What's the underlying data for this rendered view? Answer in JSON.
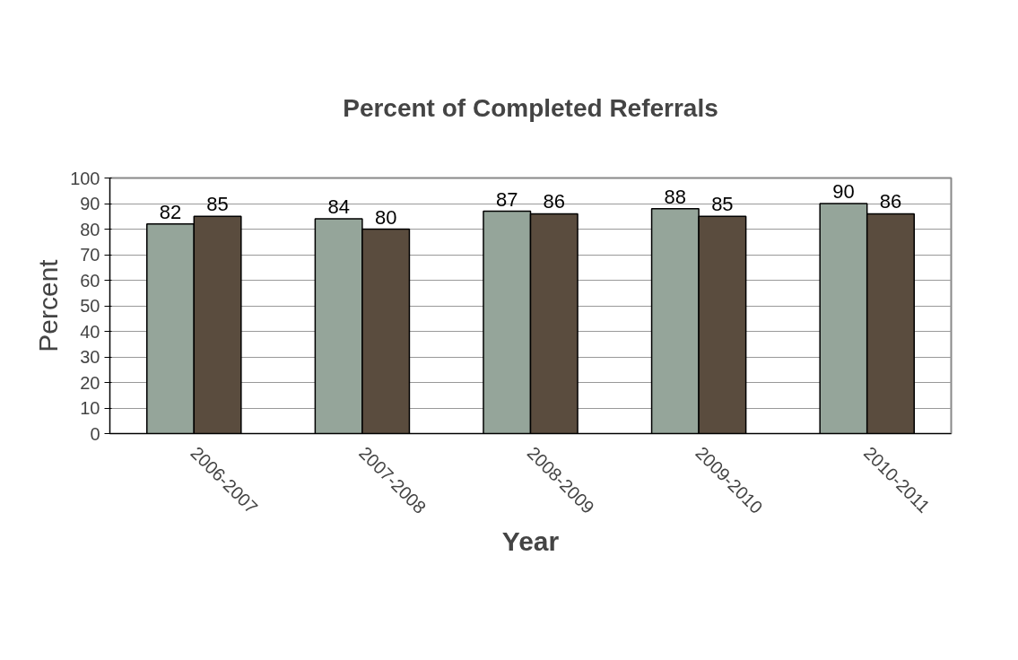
{
  "chart_data": {
    "type": "bar",
    "title": "Percent of Completed Referrals",
    "xlabel": "Year",
    "ylabel": "Percent",
    "categories": [
      "2006-2007",
      "2007-2008",
      "2008-2009",
      "2009-2010",
      "2010-2011"
    ],
    "series": [
      {
        "color": "#95a59a",
        "values": [
          82,
          84,
          87,
          88,
          90
        ]
      },
      {
        "color": "#5a4c3e",
        "values": [
          85,
          80,
          86,
          85,
          86
        ]
      }
    ],
    "ylim": [
      0,
      100
    ],
    "yticks": [
      0,
      10,
      20,
      30,
      40,
      50,
      60,
      70,
      80,
      90,
      100
    ],
    "grid": "y",
    "data_labels": true
  }
}
